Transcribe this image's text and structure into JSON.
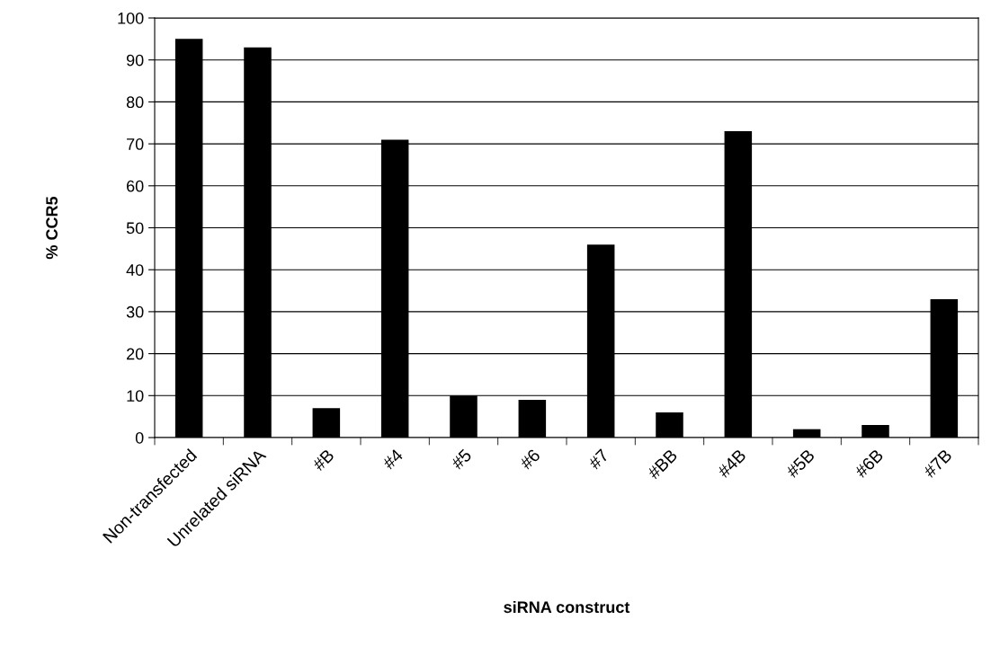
{
  "chart_data": {
    "type": "bar",
    "xlabel": "siRNA construct",
    "ylabel": "% CCR5",
    "categories": [
      "Non-transfected",
      "Unrelated siRNA",
      "#B",
      "#4",
      "#5",
      "#6",
      "#7",
      "#BB",
      "#4B",
      "#5B",
      "#6B",
      "#7B"
    ],
    "values": [
      95,
      93,
      7,
      71,
      10,
      9,
      46,
      6,
      73,
      2,
      3,
      33
    ],
    "color": "#000000",
    "ylim": [
      0,
      100
    ],
    "yticks": [
      0,
      10,
      20,
      30,
      40,
      50,
      60,
      70,
      80,
      90,
      100
    ],
    "grid": "y",
    "legend": false
  }
}
